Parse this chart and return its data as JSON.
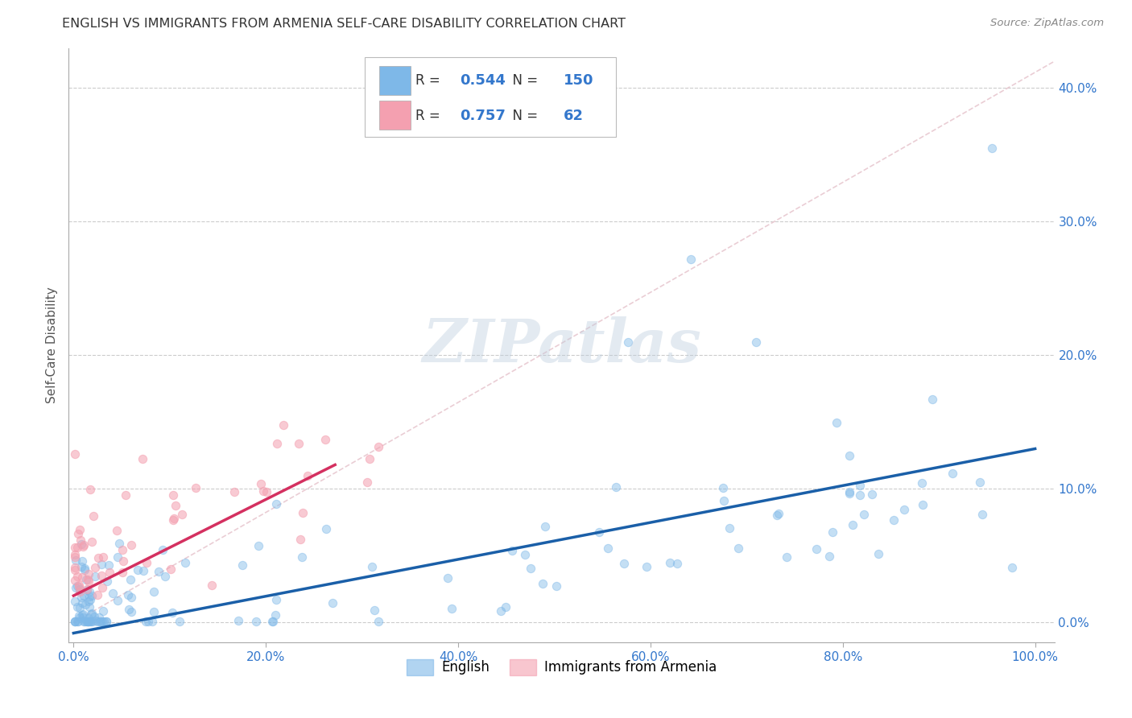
{
  "title": "ENGLISH VS IMMIGRANTS FROM ARMENIA SELF-CARE DISABILITY CORRELATION CHART",
  "source": "Source: ZipAtlas.com",
  "ylabel": "Self-Care Disability",
  "watermark": "ZIPatlas",
  "english_R": 0.544,
  "english_N": 150,
  "armenia_R": 0.757,
  "armenia_N": 62,
  "english_color": "#7EB8E8",
  "armenia_color": "#F4A0B0",
  "english_line_color": "#1A5FA8",
  "armenia_line_color": "#D43060",
  "diag_line_color": "#E8C8D0",
  "value_color": "#3377CC",
  "background_color": "#FFFFFF",
  "grid_color": "#CCCCCC",
  "title_color": "#333333",
  "source_color": "#888888",
  "ylabel_color": "#555555",
  "tick_color": "#3377CC",
  "ylim_max": 0.43,
  "xlim_max": 1.02
}
